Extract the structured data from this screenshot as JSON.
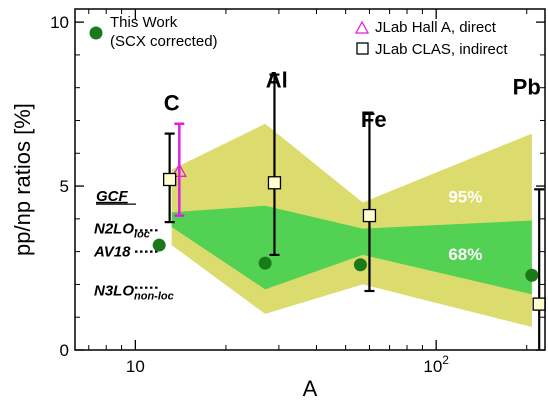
{
  "chart_data": {
    "type": "scatter",
    "xlabel": "A",
    "ylabel": "pp/np ratios [%]",
    "xscale": "log",
    "xlim": [
      6.3,
      230
    ],
    "ylim": [
      0,
      10.4
    ],
    "grid": false,
    "x_ticks": [
      {
        "value": 10,
        "label": "10"
      },
      {
        "value": 100,
        "label": "10",
        "sup": "2"
      }
    ],
    "y_ticks": [
      {
        "value": 0,
        "label": "0"
      },
      {
        "value": 5,
        "label": "5"
      },
      {
        "value": 10,
        "label": "10"
      }
    ],
    "bands": [
      {
        "name": "95%",
        "color": "#dcdc6e",
        "x": [
          13.2,
          27,
          57,
          208
        ],
        "low": [
          3.2,
          1.1,
          2.0,
          0.7
        ],
        "high": [
          5.5,
          6.9,
          4.5,
          6.6
        ]
      },
      {
        "name": "68%",
        "color": "#52d152",
        "x": [
          13.2,
          27,
          57,
          208
        ],
        "low": [
          3.75,
          1.85,
          2.9,
          1.7
        ],
        "high": [
          4.2,
          4.4,
          3.7,
          3.95
        ]
      }
    ],
    "series": [
      {
        "name": "This Work\n(SCX corrected)",
        "marker": "circle",
        "color": "#1a7a1a",
        "points": [
          {
            "x": 12,
            "y": 3.2
          },
          {
            "x": 27,
            "y": 2.65
          },
          {
            "x": 56,
            "y": 2.6
          },
          {
            "x": 208,
            "y": 2.28
          }
        ]
      },
      {
        "name": "JLab Hall A, direct",
        "marker": "triangle",
        "color": "#e020e0",
        "points": [
          {
            "x": 14,
            "y": 5.45,
            "err_low": 4.1,
            "err_high": 6.9
          }
        ]
      },
      {
        "name": "JLab CLAS, indirect",
        "marker": "square",
        "color": "#000000",
        "points": [
          {
            "x": 13,
            "y": 5.2,
            "err_low": 3.9,
            "err_high": 6.6
          },
          {
            "x": 29,
            "y": 5.1,
            "err_low": 2.9,
            "err_high": 8.4
          },
          {
            "x": 60,
            "y": 4.1,
            "err_low": 1.8,
            "err_high": 7.2
          },
          {
            "x": 220,
            "y": 1.4,
            "err_low": 0,
            "err_high": 4.9
          }
        ]
      }
    ],
    "nucleus_labels": [
      {
        "text": "C",
        "x": 13.2,
        "y": 7.3
      },
      {
        "text": "Al",
        "x": 29.5,
        "y": 8.0
      },
      {
        "text": "Fe",
        "x": 62,
        "y": 6.8
      },
      {
        "text": "Pb",
        "x": 200,
        "y": 7.8
      }
    ],
    "band_labels": [
      {
        "text": "95%",
        "x": 125,
        "y": 4.5
      },
      {
        "text": "68%",
        "x": 125,
        "y": 2.75
      }
    ],
    "gcf": {
      "title": "GCF",
      "models": [
        {
          "label": "N2LO",
          "sub": "loc",
          "y": 3.65
        },
        {
          "label": "AV18",
          "sub": "",
          "y": 3.0
        },
        {
          "label": "N3LO",
          "sub": "non-loc",
          "y": 1.9
        }
      ]
    },
    "legend": {
      "left_title": "This Work",
      "left_subtitle": "(SCX corrected)",
      "right_items": [
        "JLab Hall A, direct",
        "JLab CLAS, indirect"
      ]
    }
  }
}
